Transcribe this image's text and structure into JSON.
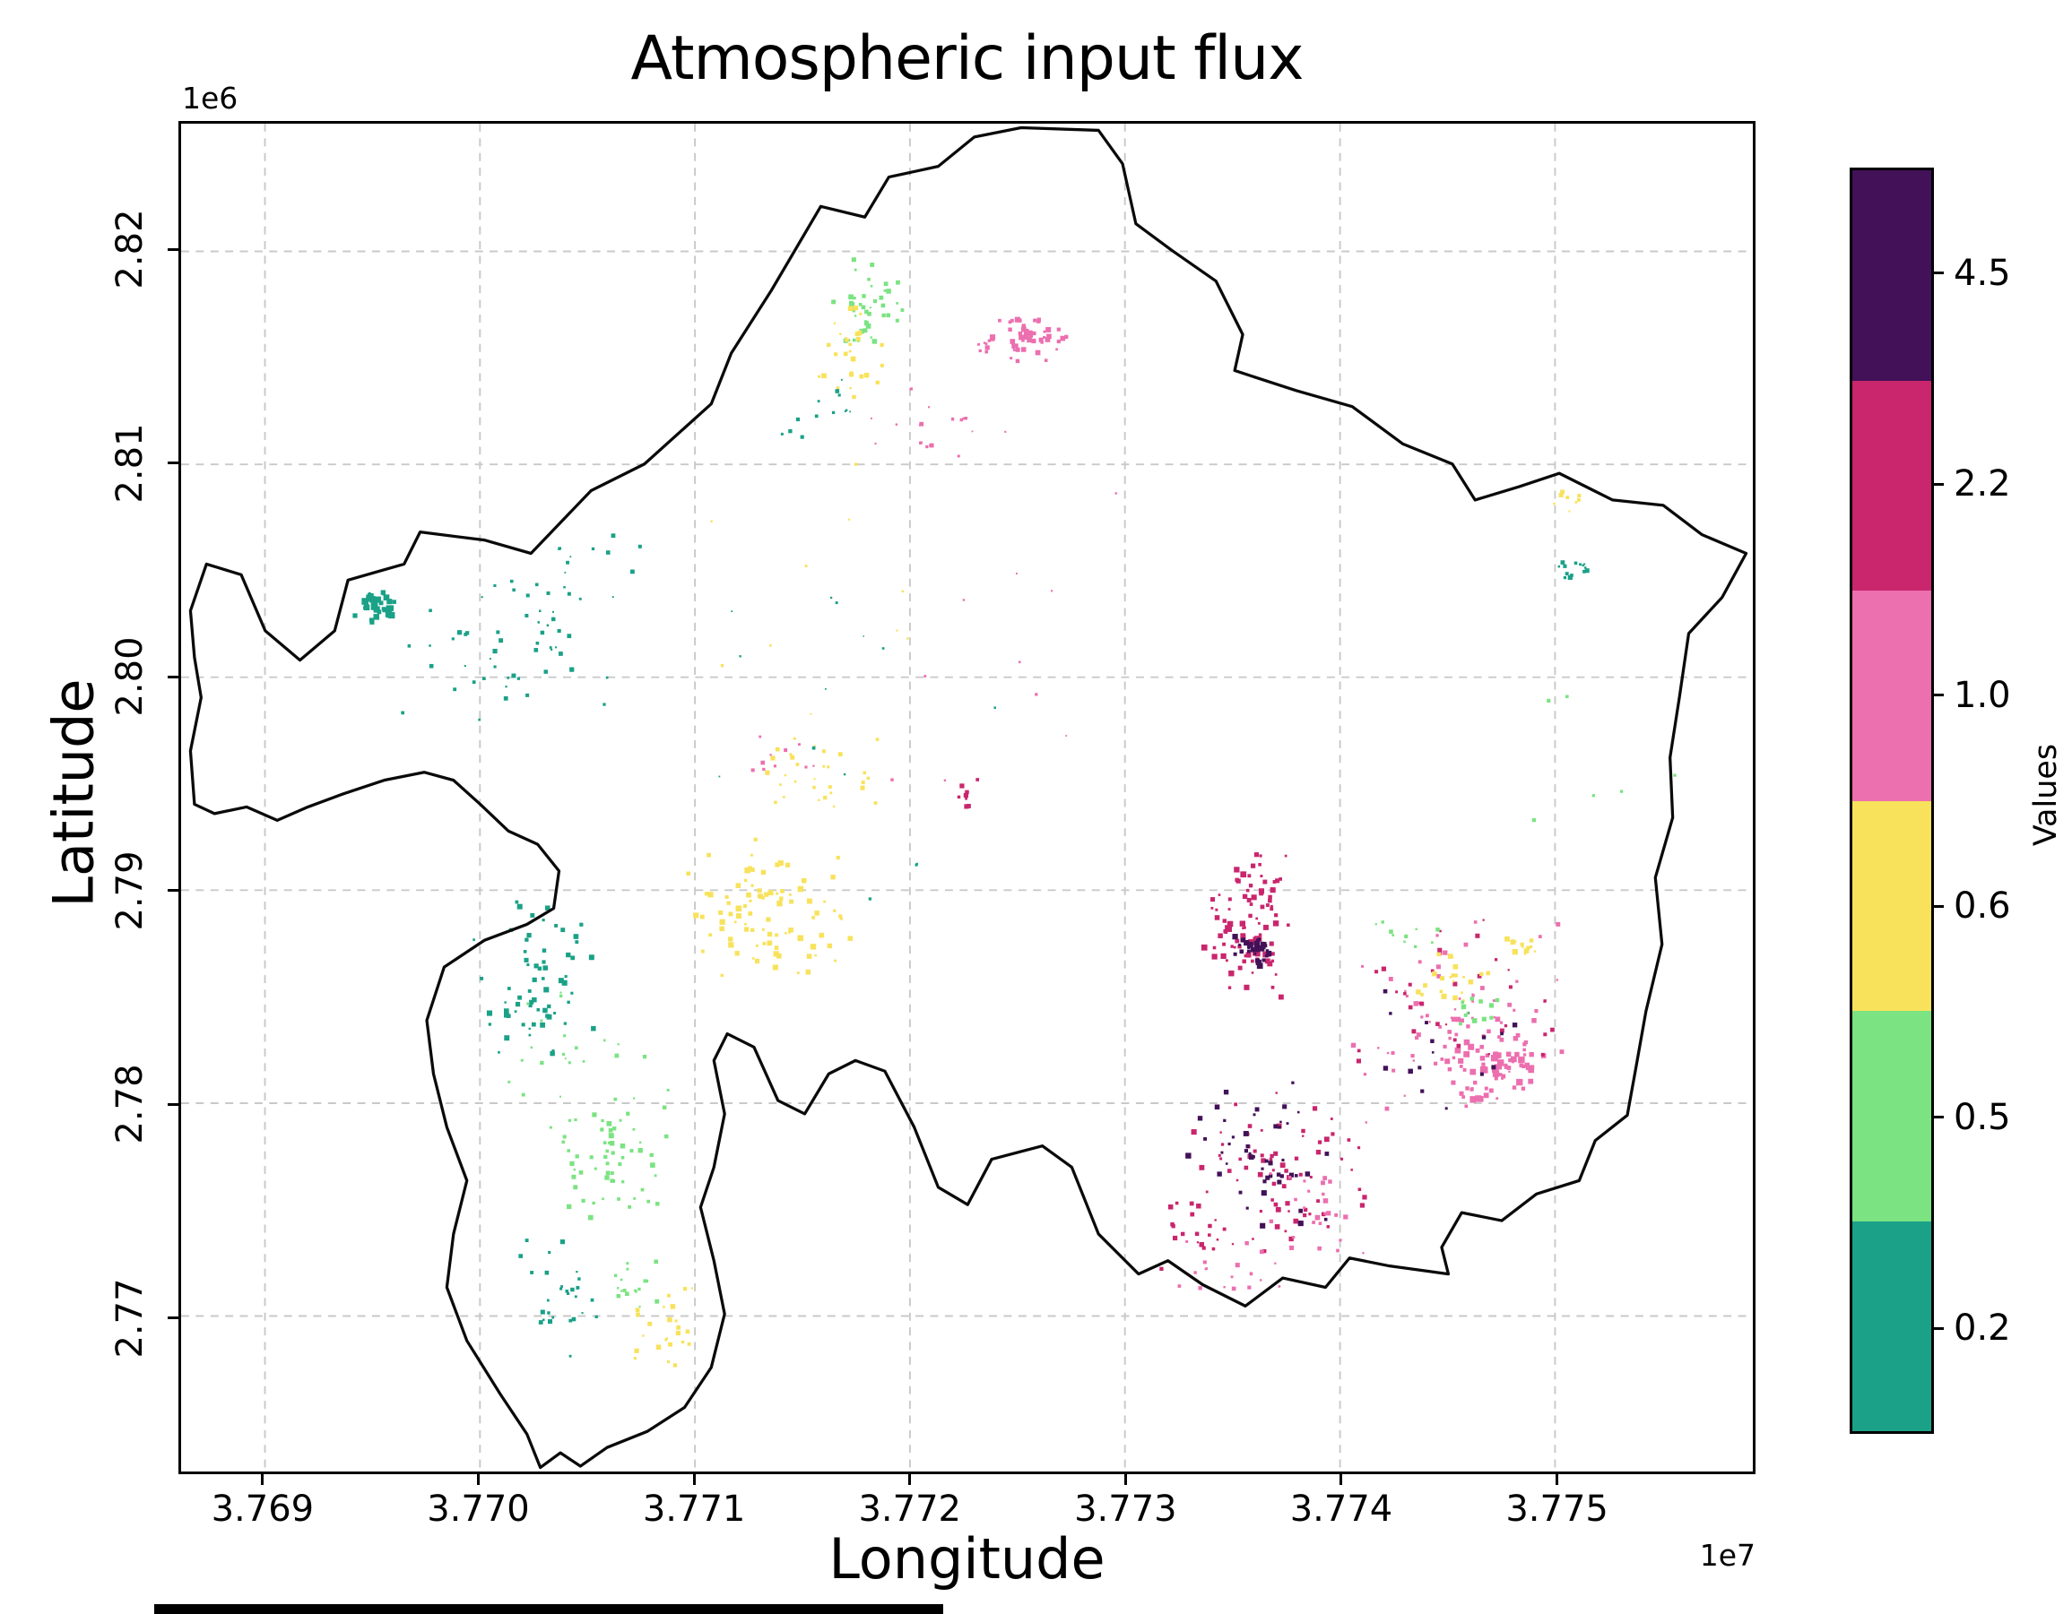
{
  "chart_data": {
    "type": "heatmap",
    "title": "Atmospheric input flux",
    "xlabel": "Longitude",
    "ylabel": "Latitude",
    "x_offset_text": "1e7",
    "y_offset_text": "1e6",
    "x_range": [
      37686100,
      37759200
    ],
    "y_range": [
      2762700,
      2826000
    ],
    "x_ticks": [
      {
        "value": 37690000,
        "label": "3.769"
      },
      {
        "value": 37700000,
        "label": "3.770"
      },
      {
        "value": 37710000,
        "label": "3.771"
      },
      {
        "value": 37720000,
        "label": "3.772"
      },
      {
        "value": 37730000,
        "label": "3.773"
      },
      {
        "value": 37740000,
        "label": "3.774"
      },
      {
        "value": 37750000,
        "label": "3.775"
      }
    ],
    "y_ticks": [
      {
        "value": 2820000,
        "label": "2.82"
      },
      {
        "value": 2810000,
        "label": "2.81"
      },
      {
        "value": 2800000,
        "label": "2.80"
      },
      {
        "value": 2790000,
        "label": "2.79"
      },
      {
        "value": 2780000,
        "label": "2.78"
      },
      {
        "value": 2770000,
        "label": "2.77"
      }
    ],
    "grid": {
      "on": true,
      "style": "dashed",
      "color": "#c9c9c9"
    },
    "colorbar": {
      "label": "Values",
      "position": "right",
      "classes_top_to_bottom": [
        {
          "label": "4.5",
          "color": "#421158"
        },
        {
          "label": "2.2",
          "color": "#C9266D"
        },
        {
          "label": "1.0",
          "color": "#EC6FAF"
        },
        {
          "label": "0.6",
          "color": "#F8E25C"
        },
        {
          "label": "0.5",
          "color": "#7BE382"
        },
        {
          "label": "0.2",
          "color": "#1AA187"
        }
      ]
    },
    "palette": {
      "4.5": "#421158",
      "2.2": "#C9266D",
      "1.0": "#EC6FAF",
      "0.6": "#F8E25C",
      "0.5": "#7BE382",
      "0.2": "#1AA187"
    },
    "frame": [
      1177,
      1010
    ],
    "boundary": {
      "stroke": "#0a0a0a",
      "fill": "none",
      "units": "axes-frame-px",
      "points": [
        [
          7,
          365
        ],
        [
          19,
          330
        ],
        [
          45,
          338
        ],
        [
          63,
          380
        ],
        [
          89,
          402
        ],
        [
          115,
          380
        ],
        [
          125,
          342
        ],
        [
          167,
          330
        ],
        [
          179,
          306
        ],
        [
          227,
          312
        ],
        [
          262,
          322
        ],
        [
          307,
          275
        ],
        [
          347,
          255
        ],
        [
          397,
          210
        ],
        [
          412,
          172
        ],
        [
          442,
          125
        ],
        [
          479,
          62
        ],
        [
          512,
          70
        ],
        [
          530,
          40
        ],
        [
          567,
          32
        ],
        [
          594,
          10
        ],
        [
          629,
          3
        ],
        [
          687,
          5
        ],
        [
          705,
          30
        ],
        [
          715,
          75
        ],
        [
          742,
          95
        ],
        [
          775,
          118
        ],
        [
          795,
          158
        ],
        [
          789,
          185
        ],
        [
          835,
          200
        ],
        [
          877,
          212
        ],
        [
          915,
          240
        ],
        [
          952,
          255
        ],
        [
          969,
          282
        ],
        [
          1002,
          272
        ],
        [
          1032,
          262
        ],
        [
          1072,
          282
        ],
        [
          1110,
          286
        ],
        [
          1139,
          308
        ],
        [
          1172,
          322
        ],
        [
          1154,
          355
        ],
        [
          1129,
          382
        ],
        [
          1122,
          430
        ],
        [
          1115,
          475
        ],
        [
          1117,
          520
        ],
        [
          1104,
          565
        ],
        [
          1109,
          615
        ],
        [
          1097,
          665
        ],
        [
          1089,
          710
        ],
        [
          1083,
          743
        ],
        [
          1059,
          762
        ],
        [
          1047,
          792
        ],
        [
          1015,
          802
        ],
        [
          989,
          822
        ],
        [
          959,
          816
        ],
        [
          944,
          842
        ],
        [
          949,
          862
        ],
        [
          905,
          856
        ],
        [
          875,
          850
        ],
        [
          857,
          872
        ],
        [
          825,
          865
        ],
        [
          797,
          886
        ],
        [
          765,
          870
        ],
        [
          739,
          852
        ],
        [
          717,
          862
        ],
        [
          687,
          832
        ],
        [
          667,
          782
        ],
        [
          645,
          766
        ],
        [
          607,
          776
        ],
        [
          589,
          810
        ],
        [
          567,
          797
        ],
        [
          549,
          752
        ],
        [
          527,
          710
        ],
        [
          505,
          702
        ],
        [
          485,
          712
        ],
        [
          467,
          742
        ],
        [
          447,
          732
        ],
        [
          429,
          692
        ],
        [
          409,
          682
        ],
        [
          399,
          702
        ],
        [
          407,
          742
        ],
        [
          399,
          782
        ],
        [
          389,
          812
        ],
        [
          399,
          852
        ],
        [
          407,
          892
        ],
        [
          397,
          932
        ],
        [
          377,
          962
        ],
        [
          349,
          980
        ],
        [
          319,
          992
        ],
        [
          299,
          1006
        ],
        [
          284,
          996
        ],
        [
          269,
          1007
        ],
        [
          259,
          982
        ],
        [
          239,
          952
        ],
        [
          214,
          912
        ],
        [
          199,
          872
        ],
        [
          204,
          832
        ],
        [
          214,
          792
        ],
        [
          199,
          752
        ],
        [
          189,
          712
        ],
        [
          184,
          672
        ],
        [
          197,
          632
        ],
        [
          227,
          612
        ],
        [
          259,
          600
        ],
        [
          279,
          588
        ],
        [
          283,
          560
        ],
        [
          267,
          540
        ],
        [
          245,
          530
        ],
        [
          224,
          510
        ],
        [
          204,
          492
        ],
        [
          182,
          486
        ],
        [
          152,
          492
        ],
        [
          122,
          502
        ],
        [
          95,
          512
        ],
        [
          72,
          522
        ],
        [
          49,
          512
        ],
        [
          25,
          517
        ],
        [
          10,
          510
        ],
        [
          7,
          470
        ],
        [
          15,
          430
        ],
        [
          10,
          400
        ]
      ]
    },
    "clusters": [
      {
        "cx": 147,
        "cy": 362,
        "rx": 18,
        "ry": 12,
        "n": 40,
        "cls": "0.2",
        "seed": 1,
        "sz": 3.2
      },
      {
        "cx": 245,
        "cy": 398,
        "rx": 90,
        "ry": 62,
        "n": 48,
        "cls": "0.2",
        "seed": 2,
        "sz": 2.2
      },
      {
        "cx": 300,
        "cy": 330,
        "rx": 60,
        "ry": 40,
        "n": 18,
        "cls": "0.2",
        "seed": 3,
        "sz": 2.0
      },
      {
        "cx": 268,
        "cy": 645,
        "rx": 52,
        "ry": 72,
        "n": 65,
        "cls": "0.2",
        "seed": 4,
        "sz": 2.6
      },
      {
        "cx": 322,
        "cy": 778,
        "rx": 46,
        "ry": 46,
        "n": 60,
        "cls": "0.5",
        "seed": 5,
        "sz": 2.6
      },
      {
        "cx": 282,
        "cy": 880,
        "rx": 32,
        "ry": 52,
        "n": 28,
        "cls": "0.2",
        "seed": 6,
        "sz": 2.2
      },
      {
        "cx": 300,
        "cy": 700,
        "rx": 80,
        "ry": 60,
        "n": 25,
        "cls": "0.5",
        "seed": 7,
        "sz": 2.0
      },
      {
        "cx": 440,
        "cy": 592,
        "rx": 72,
        "ry": 58,
        "n": 90,
        "cls": "0.6",
        "seed": 8,
        "sz": 2.8
      },
      {
        "cx": 478,
        "cy": 482,
        "rx": 58,
        "ry": 36,
        "n": 30,
        "cls": "0.6",
        "seed": 9,
        "sz": 2.2
      },
      {
        "cx": 362,
        "cy": 905,
        "rx": 30,
        "ry": 42,
        "n": 24,
        "cls": "0.6",
        "seed": 10,
        "sz": 2.4
      },
      {
        "cx": 344,
        "cy": 868,
        "rx": 26,
        "ry": 30,
        "n": 18,
        "cls": "0.5",
        "seed": 11,
        "sz": 2.2
      },
      {
        "cx": 513,
        "cy": 142,
        "rx": 28,
        "ry": 46,
        "n": 42,
        "cls": "0.5",
        "seed": 12,
        "sz": 2.4
      },
      {
        "cx": 502,
        "cy": 172,
        "rx": 32,
        "ry": 42,
        "n": 30,
        "cls": "0.6",
        "seed": 13,
        "sz": 2.4
      },
      {
        "cx": 495,
        "cy": 215,
        "rx": 55,
        "ry": 30,
        "n": 14,
        "cls": "0.2",
        "seed": 14,
        "sz": 2.0
      },
      {
        "cx": 630,
        "cy": 162,
        "rx": 38,
        "ry": 18,
        "n": 55,
        "cls": "1.0",
        "seed": 15,
        "sz": 2.6
      },
      {
        "cx": 566,
        "cy": 232,
        "rx": 60,
        "ry": 36,
        "n": 20,
        "cls": "1.0",
        "seed": 16,
        "sz": 2.0
      },
      {
        "cx": 452,
        "cy": 468,
        "rx": 34,
        "ry": 22,
        "n": 10,
        "cls": "1.0",
        "seed": 17,
        "sz": 2.0
      },
      {
        "cx": 590,
        "cy": 502,
        "rx": 9,
        "ry": 13,
        "n": 8,
        "cls": "2.2",
        "seed": 18,
        "sz": 2.4
      },
      {
        "cx": 800,
        "cy": 602,
        "rx": 36,
        "ry": 62,
        "n": 95,
        "cls": "2.2",
        "seed": 19,
        "sz": 2.8
      },
      {
        "cx": 803,
        "cy": 620,
        "rx": 17,
        "ry": 17,
        "n": 32,
        "cls": "4.5",
        "seed": 20,
        "sz": 3.0
      },
      {
        "cx": 826,
        "cy": 788,
        "rx": 70,
        "ry": 66,
        "n": 70,
        "cls": "2.2",
        "seed": 21,
        "sz": 2.6
      },
      {
        "cx": 812,
        "cy": 775,
        "rx": 62,
        "ry": 62,
        "n": 48,
        "cls": "4.5",
        "seed": 22,
        "sz": 2.8
      },
      {
        "cx": 845,
        "cy": 820,
        "rx": 45,
        "ry": 40,
        "n": 26,
        "cls": "1.0",
        "seed": 23,
        "sz": 2.4
      },
      {
        "cx": 958,
        "cy": 672,
        "rx": 100,
        "ry": 82,
        "n": 80,
        "cls": "1.0",
        "seed": 24,
        "sz": 2.4
      },
      {
        "cx": 985,
        "cy": 702,
        "rx": 46,
        "ry": 32,
        "n": 65,
        "cls": "1.0",
        "seed": 25,
        "sz": 3.2
      },
      {
        "cx": 948,
        "cy": 660,
        "rx": 90,
        "ry": 70,
        "n": 32,
        "cls": "2.2",
        "seed": 26,
        "sz": 2.2
      },
      {
        "cx": 940,
        "cy": 690,
        "rx": 80,
        "ry": 60,
        "n": 16,
        "cls": "4.5",
        "seed": 27,
        "sz": 2.4
      },
      {
        "cx": 952,
        "cy": 640,
        "rx": 30,
        "ry": 22,
        "n": 22,
        "cls": "0.6",
        "seed": 28,
        "sz": 2.6
      },
      {
        "cx": 1008,
        "cy": 617,
        "rx": 18,
        "ry": 14,
        "n": 14,
        "cls": "0.6",
        "seed": 29,
        "sz": 2.6
      },
      {
        "cx": 972,
        "cy": 668,
        "rx": 20,
        "ry": 16,
        "n": 12,
        "cls": "0.5",
        "seed": 30,
        "sz": 2.4
      },
      {
        "cx": 918,
        "cy": 608,
        "rx": 30,
        "ry": 20,
        "n": 10,
        "cls": "0.5",
        "seed": 31,
        "sz": 2.0
      },
      {
        "cx": 1041,
        "cy": 332,
        "rx": 15,
        "ry": 15,
        "n": 14,
        "cls": "0.2",
        "seed": 32,
        "sz": 2.2
      },
      {
        "cx": 1039,
        "cy": 283,
        "rx": 11,
        "ry": 11,
        "n": 8,
        "cls": "0.6",
        "seed": 33,
        "sz": 2.2
      },
      {
        "cx": 450,
        "cy": 450,
        "rx": 200,
        "ry": 150,
        "n": 14,
        "cls": "0.2",
        "seed": 34,
        "sz": 1.6
      },
      {
        "cx": 650,
        "cy": 420,
        "rx": 200,
        "ry": 150,
        "n": 10,
        "cls": "1.0",
        "seed": 35,
        "sz": 1.6
      },
      {
        "cx": 500,
        "cy": 330,
        "rx": 180,
        "ry": 120,
        "n": 10,
        "cls": "0.6",
        "seed": 36,
        "sz": 1.6
      },
      {
        "cx": 1060,
        "cy": 470,
        "rx": 60,
        "ry": 60,
        "n": 6,
        "cls": "0.5",
        "seed": 37,
        "sz": 1.8
      },
      {
        "cx": 790,
        "cy": 860,
        "rx": 50,
        "ry": 30,
        "n": 18,
        "cls": "1.0",
        "seed": 38,
        "sz": 2.4
      },
      {
        "cx": 760,
        "cy": 830,
        "rx": 40,
        "ry": 30,
        "n": 20,
        "cls": "2.2",
        "seed": 39,
        "sz": 2.4
      }
    ]
  }
}
